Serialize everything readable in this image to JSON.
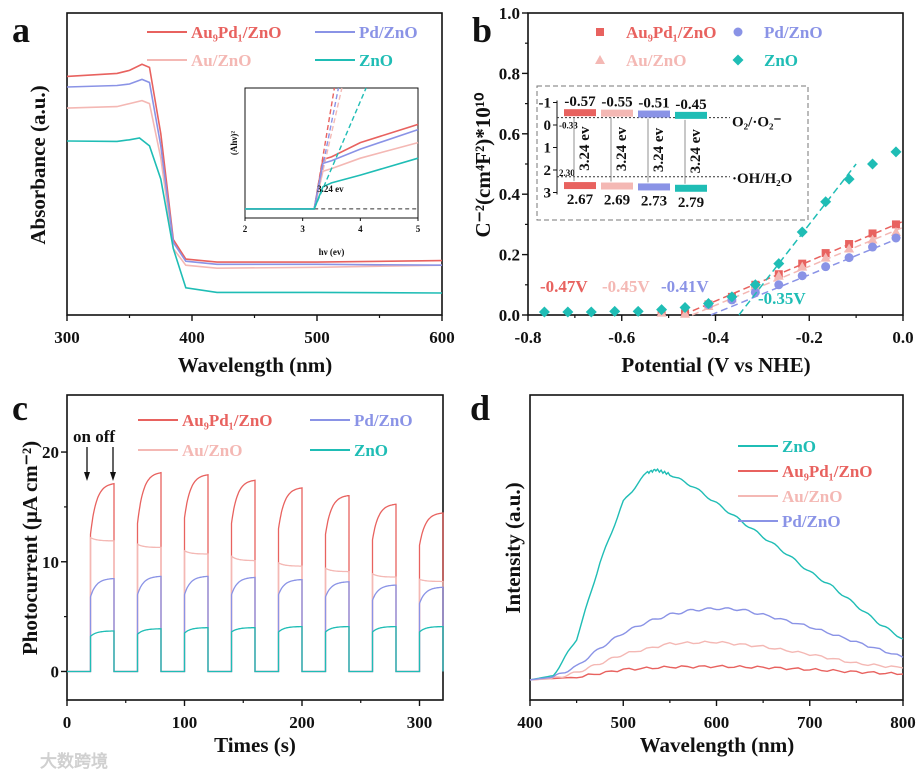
{
  "figure": {
    "watermark": "大数跨境"
  },
  "colors": {
    "au9pd1": "#e8625f",
    "au": "#f4b8b4",
    "pd": "#8a93e6",
    "zno": "#1fbdb5"
  },
  "chart_data": [
    {
      "panel": "a",
      "type": "line",
      "label": "a",
      "xlabel": "Wavelength (nm)",
      "ylabel": "Absorbance (a.u.)",
      "xlim": [
        300,
        600
      ],
      "ylim": [
        0,
        1
      ],
      "xticks": [
        300,
        400,
        500,
        600
      ],
      "xtick_labels": [
        "300",
        "400",
        "500",
        "600"
      ],
      "series": [
        {
          "name": "Au₉Pd₁/ZnO",
          "key": "au9pd1",
          "x": [
            300,
            340,
            350,
            360,
            366,
            375,
            385,
            395,
            420,
            500,
            600
          ],
          "y": [
            0.79,
            0.8,
            0.81,
            0.83,
            0.82,
            0.6,
            0.25,
            0.185,
            0.175,
            0.175,
            0.18
          ]
        },
        {
          "name": "Au/ZnO",
          "key": "au",
          "x": [
            300,
            340,
            350,
            360,
            366,
            375,
            385,
            395,
            420,
            500,
            600
          ],
          "y": [
            0.685,
            0.69,
            0.7,
            0.71,
            0.7,
            0.52,
            0.22,
            0.165,
            0.155,
            0.158,
            0.165
          ]
        },
        {
          "name": "Pd/ZnO",
          "key": "pd",
          "x": [
            300,
            340,
            350,
            360,
            366,
            375,
            385,
            395,
            420,
            500,
            600
          ],
          "y": [
            0.755,
            0.76,
            0.765,
            0.78,
            0.77,
            0.56,
            0.24,
            0.178,
            0.168,
            0.168,
            0.165
          ]
        },
        {
          "name": "ZnO",
          "key": "zno",
          "x": [
            300,
            340,
            350,
            358,
            366,
            375,
            385,
            395,
            420,
            500,
            600
          ],
          "y": [
            0.576,
            0.575,
            0.58,
            0.586,
            0.56,
            0.45,
            0.22,
            0.09,
            0.075,
            0.075,
            0.073
          ]
        }
      ],
      "inset": {
        "xlabel": "hν (ev)",
        "ylabel": "(Ahν)²",
        "xlim": [
          2,
          5
        ],
        "ylim": [
          0,
          1
        ],
        "xticks": [
          2,
          3,
          4,
          5
        ],
        "xtick_labels": [
          "2",
          "3",
          "4",
          "5"
        ],
        "annotation": "3.24 ev",
        "baseline": 0.07,
        "series": [
          {
            "key": "au9pd1",
            "x": [
              2,
              3.2,
              3.35,
              3.5,
              4,
              5
            ],
            "y": [
              0.07,
              0.07,
              0.45,
              0.47,
              0.58,
              0.72
            ],
            "fit_end": [
              3.55,
              1
            ]
          },
          {
            "key": "au",
            "x": [
              2,
              3.2,
              3.35,
              3.5,
              4,
              5
            ],
            "y": [
              0.07,
              0.07,
              0.36,
              0.38,
              0.46,
              0.58
            ],
            "fit_end": [
              3.68,
              1
            ]
          },
          {
            "key": "pd",
            "x": [
              2,
              3.2,
              3.35,
              3.5,
              4,
              5
            ],
            "y": [
              0.07,
              0.07,
              0.42,
              0.44,
              0.53,
              0.68
            ],
            "fit_end": [
              3.62,
              1
            ]
          },
          {
            "key": "zno",
            "x": [
              2,
              3.2,
              3.35,
              3.5,
              4,
              5
            ],
            "y": [
              0.07,
              0.07,
              0.24,
              0.27,
              0.33,
              0.46
            ],
            "fit_end": [
              4.1,
              1
            ]
          }
        ]
      }
    },
    {
      "panel": "b",
      "type": "scatter",
      "label": "b",
      "xlabel": "Potential (V vs NHE)",
      "ylabel": "C⁻²(cm⁴F²)*10¹⁰",
      "xlim": [
        -0.8,
        0
      ],
      "ylim": [
        0,
        1
      ],
      "xticks": [
        -0.8,
        -0.6,
        -0.4,
        -0.2,
        0
      ],
      "xtick_labels": [
        "-0.8",
        "-0.6",
        "-0.4",
        "-0.2",
        "0.0"
      ],
      "yticks": [
        0,
        0.2,
        0.4,
        0.6,
        0.8,
        1.0
      ],
      "ytick_labels": [
        "0.0",
        "0.2",
        "0.4",
        "0.6",
        "0.8",
        "1.0"
      ],
      "series": [
        {
          "name": "Au₉Pd₁/ZnO",
          "key": "au9pd1",
          "marker": "square",
          "x": [
            -0.515,
            -0.465,
            -0.415,
            -0.365,
            -0.315,
            -0.265,
            -0.215,
            -0.165,
            -0.115,
            -0.065,
            -0.015
          ],
          "y": [
            0.01,
            0.005,
            0.035,
            0.06,
            0.1,
            0.135,
            0.17,
            0.205,
            0.235,
            0.27,
            0.3
          ],
          "intercept": -0.47,
          "intercept_label": "-0.47V",
          "fit_end": [
            0,
            0.31
          ]
        },
        {
          "name": "Au/ZnO",
          "key": "au",
          "marker": "triangle",
          "x": [
            -0.515,
            -0.465,
            -0.415,
            -0.365,
            -0.315,
            -0.265,
            -0.215,
            -0.165,
            -0.115,
            -0.065,
            -0.015
          ],
          "y": [
            0.008,
            0.004,
            0.03,
            0.055,
            0.095,
            0.13,
            0.16,
            0.19,
            0.22,
            0.25,
            0.275
          ],
          "intercept": -0.45,
          "intercept_label": "-0.45V",
          "fit_end": [
            0,
            0.29
          ]
        },
        {
          "name": "Pd/ZnO",
          "key": "pd",
          "marker": "circle",
          "x": [
            -0.415,
            -0.365,
            -0.315,
            -0.265,
            -0.215,
            -0.165,
            -0.115,
            -0.065,
            -0.015
          ],
          "y": [
            0.035,
            0.05,
            0.075,
            0.1,
            0.13,
            0.16,
            0.19,
            0.225,
            0.255
          ],
          "intercept": -0.41,
          "intercept_label": "-0.41V",
          "fit_end": [
            0,
            0.26
          ]
        },
        {
          "name": "ZnO",
          "key": "zno",
          "marker": "diamond",
          "x": [
            -0.765,
            -0.715,
            -0.665,
            -0.615,
            -0.565,
            -0.515,
            -0.465,
            -0.415,
            -0.365,
            -0.315,
            -0.265,
            -0.215,
            -0.165,
            -0.115,
            -0.065,
            -0.015
          ],
          "y": [
            0.01,
            0.01,
            0.01,
            0.012,
            0.012,
            0.018,
            0.025,
            0.038,
            0.06,
            0.1,
            0.17,
            0.275,
            0.375,
            0.45,
            0.5,
            0.54
          ],
          "intercept": -0.35,
          "intercept_label": "-0.35V",
          "fit_end": [
            -0.1,
            0.5
          ]
        }
      ],
      "band_diagram": {
        "axis_values": [
          -1,
          0,
          1,
          2,
          3
        ],
        "axis_labels": [
          "-1",
          "0",
          "1",
          "2",
          "3"
        ],
        "cb": [
          -0.57,
          -0.55,
          -0.51,
          -0.45
        ],
        "cb_labels": [
          "-0.57",
          "-0.55",
          "-0.51",
          "-0.45"
        ],
        "vb": [
          2.67,
          2.69,
          2.73,
          2.79
        ],
        "vb_labels": [
          "2.67",
          "2.69",
          "2.73",
          "2.79"
        ],
        "gap_label": "3.24 ev",
        "ref_levels": [
          {
            "value": -0.33,
            "value_label": "-0.33",
            "label": "O₂/·O₂⁻"
          },
          {
            "value": 2.3,
            "value_label": "2.30",
            "label": "·OH/H₂O"
          }
        ]
      }
    },
    {
      "panel": "c",
      "type": "line",
      "label": "c",
      "xlabel": "Times (s)",
      "ylabel": "Photocurrent (μA cm⁻²)",
      "xlim": [
        0,
        320
      ],
      "ylim": [
        -2.6,
        25.2
      ],
      "xticks": [
        0,
        100,
        200,
        300
      ],
      "xtick_labels": [
        "0",
        "100",
        "200",
        "300"
      ],
      "yticks": [
        0,
        10,
        20
      ],
      "ytick_labels": [
        "0",
        "10",
        "20"
      ],
      "annotation": "on off",
      "on_times": [
        20,
        60,
        100,
        140,
        180,
        220,
        260,
        300
      ],
      "off_times": [
        40,
        80,
        120,
        160,
        200,
        240,
        280,
        320
      ],
      "series": [
        {
          "name": "Au₉Pd₁/ZnO",
          "key": "au9pd1",
          "on_start": [
            12.5,
            13.5,
            14,
            13.5,
            13,
            12.5,
            12,
            11.5
          ],
          "on_end": [
            17.2,
            18.2,
            18,
            17.5,
            16.8,
            16.1,
            15.3,
            14.5
          ]
        },
        {
          "name": "Au/ZnO",
          "key": "au",
          "on_start": [
            12.2,
            11.6,
            11,
            10.5,
            9.9,
            9.4,
            8.9,
            8.4
          ],
          "on_end": [
            11.9,
            11.3,
            10.7,
            10.1,
            9.6,
            9.1,
            8.6,
            8.2
          ]
        },
        {
          "name": "Pd/ZnO",
          "key": "pd",
          "on_start": [
            6.8,
            7,
            7,
            7,
            7,
            6.8,
            6.5,
            6.2
          ],
          "on_end": [
            8.5,
            8.7,
            8.7,
            8.6,
            8.4,
            8.2,
            7.9,
            7.7
          ]
        },
        {
          "name": "ZnO",
          "key": "zno",
          "on_start": [
            3.2,
            3.4,
            3.5,
            3.6,
            3.6,
            3.6,
            3.6,
            3.6
          ],
          "on_end": [
            3.7,
            3.9,
            4.0,
            4.0,
            4.1,
            4.1,
            4.1,
            4.1
          ]
        }
      ]
    },
    {
      "panel": "d",
      "type": "line",
      "label": "d",
      "xlabel": "Wavelength (nm)",
      "ylabel": "Intensity (a.u.)",
      "xlim": [
        400,
        800
      ],
      "ylim": [
        0,
        1
      ],
      "xticks": [
        400,
        500,
        600,
        700,
        800
      ],
      "xtick_labels": [
        "400",
        "500",
        "600",
        "700",
        "800"
      ],
      "series": [
        {
          "name": "ZnO",
          "key": "zno",
          "x": [
            400,
            425,
            450,
            475,
            500,
            525,
            535,
            550,
            575,
            600,
            625,
            650,
            675,
            700,
            725,
            750,
            775,
            800
          ],
          "y": [
            0.066,
            0.08,
            0.2,
            0.45,
            0.65,
            0.745,
            0.755,
            0.74,
            0.7,
            0.645,
            0.59,
            0.535,
            0.48,
            0.42,
            0.37,
            0.31,
            0.25,
            0.2
          ]
        },
        {
          "name": "Au₉Pd₁/ZnO",
          "key": "au9pd1",
          "x": [
            400,
            450,
            500,
            550,
            600,
            650,
            700,
            750,
            800
          ],
          "y": [
            0.066,
            0.075,
            0.1,
            0.108,
            0.11,
            0.107,
            0.1,
            0.092,
            0.085
          ]
        },
        {
          "name": "Au/ZnO",
          "key": "au",
          "x": [
            400,
            425,
            450,
            475,
            500,
            550,
            600,
            650,
            700,
            750,
            800
          ],
          "y": [
            0.066,
            0.07,
            0.09,
            0.12,
            0.15,
            0.185,
            0.19,
            0.175,
            0.15,
            0.12,
            0.105
          ]
        },
        {
          "name": "Pd/ZnO",
          "key": "pd",
          "x": [
            400,
            425,
            450,
            475,
            500,
            525,
            550,
            575,
            600,
            625,
            650,
            700,
            750,
            800
          ],
          "y": [
            0.066,
            0.075,
            0.11,
            0.17,
            0.22,
            0.255,
            0.28,
            0.295,
            0.3,
            0.297,
            0.28,
            0.24,
            0.19,
            0.14
          ]
        }
      ]
    }
  ]
}
